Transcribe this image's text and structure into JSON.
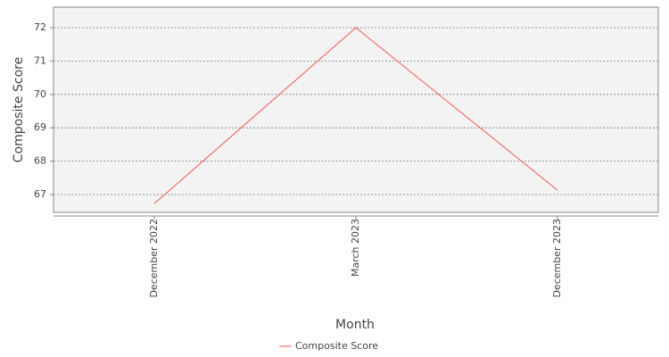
{
  "chart_data": {
    "type": "line",
    "categories": [
      "December 2022",
      "March 2023",
      "December 2023"
    ],
    "series": [
      {
        "name": "Composite Score",
        "color": "#f05a4f",
        "values": [
          66.73,
          72,
          67.13
        ]
      }
    ],
    "xlabel": "Month",
    "ylabel": "Composite Score",
    "ylim": [
      66.465,
      72.615
    ],
    "yticks": [
      67,
      68,
      69,
      70,
      71,
      72
    ],
    "grid": true,
    "legend": "bottom"
  }
}
